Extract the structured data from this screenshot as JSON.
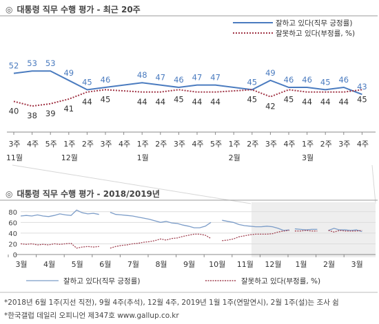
{
  "colors": {
    "approve": "#4a7bbf",
    "disapprove": "#a03344",
    "approve_light": "#7b9cc8",
    "disapprove_light": "#a04050",
    "shade": "#eeeeee"
  },
  "top": {
    "mark": "◎",
    "title": "대통령 직무 수행 평가 - 최근 20주",
    "legend": [
      {
        "label": "잘하고 있다(직무 긍정률)",
        "key": "approve"
      },
      {
        "label": "잘못하고 있다(부정률, %)",
        "key": "disapprove"
      }
    ]
  },
  "bottom": {
    "mark": "◎",
    "title": "대통령 직무 수행 평가 - 2018/2019년",
    "legend": [
      {
        "label": "잘하고 있다(직무 긍정률)",
        "key": "approve"
      },
      {
        "label": "잘못하고 있다(부정률, %)",
        "key": "disapprove"
      }
    ]
  },
  "notes": [
    "*2018년 6월 1주(지선 직전), 9월 4주(추석), 12월 4주, 2019년 1월 1주(연말연시), 2월 1주(설)는 조사 쉼",
    "*한국갤럽 데일리 오피니언 제347호 www.gallup.co.kr"
  ],
  "chart_data": [
    {
      "type": "line",
      "title": "대통령 직무 수행 평가 - 최근 20주",
      "categories": [
        "3주",
        "4주",
        "5주",
        "1주",
        "2주",
        "3주",
        "4주",
        "1주",
        "2주",
        "3주",
        "4주",
        "5주",
        "1주",
        "2주",
        "3주",
        "4주",
        "1주",
        "2주",
        "3주",
        "4주"
      ],
      "month_labels": [
        {
          "at": 0,
          "label": "11월"
        },
        {
          "at": 3,
          "label": "12월"
        },
        {
          "at": 7,
          "label": "1월"
        },
        {
          "at": 12,
          "label": "2월"
        },
        {
          "at": 16,
          "label": "3월"
        }
      ],
      "series": [
        {
          "name": "잘하고 있다(직무 긍정률)",
          "values": [
            52,
            53,
            53,
            49,
            45,
            46,
            null,
            48,
            47,
            46,
            47,
            47,
            null,
            45,
            49,
            46,
            46,
            45,
            46,
            43
          ]
        },
        {
          "name": "잘못하고 있다(부정률, %)",
          "values": [
            40,
            38,
            39,
            41,
            44,
            45,
            null,
            44,
            44,
            45,
            44,
            44,
            null,
            45,
            42,
            45,
            44,
            44,
            44,
            45
          ]
        }
      ],
      "ylim": [
        0,
        100
      ],
      "legend_position": "top-right"
    },
    {
      "type": "line",
      "title": "대통령 직무 수행 평가 - 2018/2019년",
      "x_labels": [
        "3월",
        "4월",
        "5월",
        "6월",
        "7월",
        "8월",
        "9월",
        "10월",
        "11월",
        "12월",
        "1월",
        "2월",
        "3월"
      ],
      "yticks": [
        0,
        20,
        40,
        60,
        80
      ],
      "ylim": [
        0,
        90
      ],
      "grid": true,
      "shaded_range": "recent 20 weeks (12월 onward)",
      "series": [
        {
          "name": "잘하고 있다(직무 긍정률)",
          "segments": [
            [
              [
                0.0,
                72
              ],
              [
                0.2,
                73
              ],
              [
                0.4,
                72
              ],
              [
                0.6,
                74
              ],
              [
                0.8,
                72
              ],
              [
                1.0,
                71
              ],
              [
                1.2,
                73
              ],
              [
                1.4,
                76
              ],
              [
                1.6,
                74
              ],
              [
                1.8,
                73
              ],
              [
                2.0,
                83
              ],
              [
                2.2,
                78
              ],
              [
                2.4,
                76
              ],
              [
                2.6,
                77
              ],
              [
                2.8,
                75
              ]
            ],
            [
              [
                3.2,
                79
              ],
              [
                3.4,
                75
              ],
              [
                3.6,
                74
              ],
              [
                3.8,
                73
              ],
              [
                4.0,
                72
              ],
              [
                4.2,
                70
              ],
              [
                4.4,
                68
              ],
              [
                4.6,
                66
              ],
              [
                4.8,
                63
              ],
              [
                5.0,
                60
              ],
              [
                5.2,
                62
              ],
              [
                5.4,
                59
              ],
              [
                5.6,
                58
              ],
              [
                5.8,
                55
              ],
              [
                6.0,
                53
              ],
              [
                6.2,
                50
              ],
              [
                6.4,
                50
              ],
              [
                6.6,
                53
              ],
              [
                6.8,
                60
              ]
            ],
            [
              [
                7.2,
                64
              ],
              [
                7.4,
                62
              ],
              [
                7.6,
                60
              ],
              [
                7.8,
                56
              ],
              [
                8.0,
                54
              ],
              [
                8.2,
                53
              ],
              [
                8.4,
                52
              ],
              [
                8.6,
                52
              ],
              [
                8.8,
                53
              ],
              [
                9.0,
                52
              ],
              [
                9.2,
                49
              ],
              [
                9.4,
                45
              ],
              [
                9.6,
                46
              ]
            ],
            [
              [
                9.8,
                48
              ],
              [
                10.0,
                47
              ],
              [
                10.2,
                46
              ],
              [
                10.4,
                47
              ],
              [
                10.6,
                47
              ]
            ],
            [
              [
                11.0,
                45
              ],
              [
                11.2,
                49
              ],
              [
                11.4,
                46
              ],
              [
                11.6,
                46
              ],
              [
                11.8,
                45
              ],
              [
                12.0,
                46
              ],
              [
                12.2,
                43
              ]
            ]
          ]
        },
        {
          "name": "잘못하고 있다(부정률, %)",
          "segments": [
            [
              [
                0.0,
                20
              ],
              [
                0.2,
                19
              ],
              [
                0.4,
                20
              ],
              [
                0.6,
                18
              ],
              [
                0.8,
                19
              ],
              [
                1.0,
                18
              ],
              [
                1.2,
                20
              ],
              [
                1.4,
                19
              ],
              [
                1.6,
                20
              ],
              [
                1.8,
                21
              ],
              [
                2.0,
                12
              ],
              [
                2.2,
                14
              ],
              [
                2.4,
                15
              ],
              [
                2.6,
                14
              ],
              [
                2.8,
                15
              ]
            ],
            [
              [
                3.2,
                12
              ],
              [
                3.4,
                15
              ],
              [
                3.6,
                17
              ],
              [
                3.8,
                18
              ],
              [
                4.0,
                20
              ],
              [
                4.2,
                21
              ],
              [
                4.4,
                23
              ],
              [
                4.6,
                24
              ],
              [
                4.8,
                26
              ],
              [
                5.0,
                29
              ],
              [
                5.2,
                27
              ],
              [
                5.4,
                30
              ],
              [
                5.6,
                31
              ],
              [
                5.8,
                34
              ],
              [
                6.0,
                36
              ],
              [
                6.2,
                38
              ],
              [
                6.4,
                38
              ],
              [
                6.6,
                36
              ],
              [
                6.8,
                30
              ]
            ],
            [
              [
                7.2,
                26
              ],
              [
                7.4,
                27
              ],
              [
                7.6,
                29
              ],
              [
                7.8,
                33
              ],
              [
                8.0,
                35
              ],
              [
                8.2,
                37
              ],
              [
                8.4,
                38
              ],
              [
                8.6,
                38
              ],
              [
                8.8,
                38
              ],
              [
                9.0,
                39
              ],
              [
                9.2,
                42
              ],
              [
                9.4,
                44
              ],
              [
                9.6,
                45
              ]
            ],
            [
              [
                9.8,
                44
              ],
              [
                10.0,
                44
              ],
              [
                10.2,
                45
              ],
              [
                10.4,
                44
              ],
              [
                10.6,
                44
              ]
            ],
            [
              [
                11.0,
                45
              ],
              [
                11.2,
                42
              ],
              [
                11.4,
                45
              ],
              [
                11.6,
                44
              ],
              [
                11.8,
                44
              ],
              [
                12.0,
                44
              ],
              [
                12.2,
                45
              ]
            ]
          ]
        }
      ]
    }
  ]
}
